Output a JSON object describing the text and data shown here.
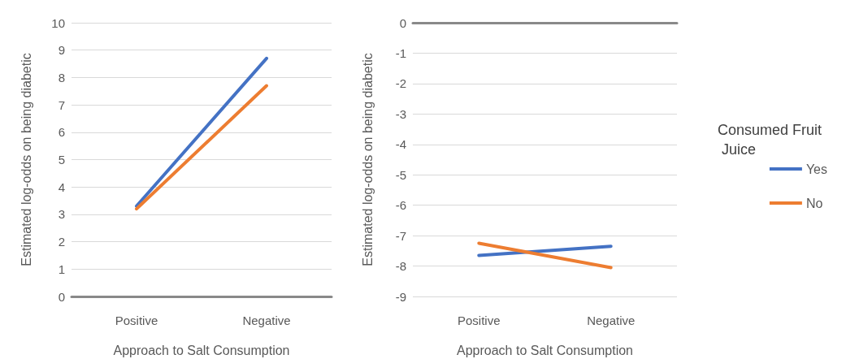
{
  "chart_data": [
    {
      "type": "line",
      "xlabel": "Approach to Salt Consumption",
      "ylabel": "Estimated log-odds on being diabetic",
      "categories": [
        "Positive",
        "Negative"
      ],
      "ylim": [
        0,
        10
      ],
      "yticks": [
        0,
        1,
        2,
        3,
        4,
        5,
        6,
        7,
        8,
        9,
        10
      ],
      "grid": "y",
      "legend": false,
      "marker": "none",
      "series": [
        {
          "color": "#4472c4",
          "values": [
            3.3,
            8.7
          ]
        },
        {
          "color": "#ed7d31",
          "values": [
            3.2,
            7.7
          ]
        }
      ]
    },
    {
      "type": "line",
      "xlabel": "Approach to Salt Consumption",
      "ylabel": "Estimated log-odds on being diabetic",
      "legend_title": "Consumed Fruit Juice",
      "categories": [
        "Positive",
        "Negative"
      ],
      "ylim": [
        -9,
        0
      ],
      "yticks": [
        -9,
        -8,
        -7,
        -6,
        -5,
        -4,
        -3,
        -2,
        -1,
        0
      ],
      "grid": "y",
      "legend": "right",
      "marker": "none",
      "series": [
        {
          "name": "Yes",
          "color": "#4472c4",
          "values": [
            -7.65,
            -7.35
          ]
        },
        {
          "name": "No",
          "color": "#ed7d31",
          "values": [
            -7.25,
            -8.05
          ]
        }
      ]
    }
  ]
}
